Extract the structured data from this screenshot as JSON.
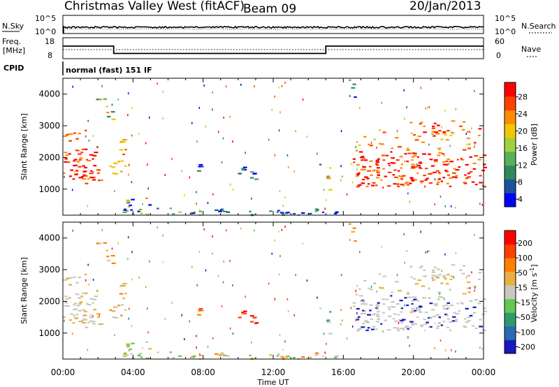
{
  "header": {
    "station": "Christmas Valley West (fitACF)",
    "beam": "Beam 09",
    "date": "20/Jan/2013"
  },
  "top_panels": {
    "nsky_label": "N.Sky",
    "nsky_ticks": [
      "10^5",
      "10^0"
    ],
    "nsearch_label": "N.Search",
    "nsearch_ticks": [
      "10^5",
      "10^0"
    ],
    "freq_label_1": "Freq.",
    "freq_label_2": "[MHz]",
    "freq_ticks": [
      "18",
      "8"
    ],
    "nave_label": "Nave",
    "nave_ticks": [
      "60",
      "0"
    ],
    "cpid_label": "CPID",
    "cpid_text": "normal (fast) 151 IF"
  },
  "chart_data": [
    {
      "type": "line",
      "title": "",
      "series": [
        {
          "name": "Freq.",
          "x": [
            0.0,
            2.9,
            2.9,
            15.0,
            15.0,
            24.0
          ],
          "values": [
            14.0,
            14.0,
            10.5,
            10.5,
            14.0,
            14.0
          ]
        }
      ],
      "xlim": [
        0,
        24
      ],
      "ylim": [
        8,
        18
      ],
      "ylabel": "Freq. [MHz]"
    },
    {
      "type": "heatmap",
      "ylabel": "Slant Range [km]",
      "colorbar_label": "Power [dB]",
      "colorbar_ticks": [
        "28",
        "24",
        "20",
        "16",
        "12",
        "8",
        "4"
      ],
      "y_ticks": [
        "4000",
        "3000",
        "2000",
        "1000"
      ],
      "xlim": [
        0,
        24
      ],
      "ylim": [
        180,
        4500
      ]
    },
    {
      "type": "heatmap",
      "ylabel": "Slant Range [km]",
      "colorbar_label": "Velocity [m s^-1]",
      "colorbar_ticks": [
        "200",
        "100",
        "50",
        "15",
        "-15",
        "-50",
        "-100",
        "-200"
      ],
      "y_ticks": [
        "4000",
        "3000",
        "2000",
        "1000"
      ],
      "xlim": [
        0,
        24
      ],
      "ylim": [
        180,
        4500
      ]
    }
  ],
  "x_axis": {
    "ticks": [
      "00:00",
      "04:00",
      "08:00",
      "12:00",
      "16:00",
      "20:00",
      "00:00"
    ],
    "label": "Time UT"
  },
  "colors": {
    "power": [
      "#0000ff",
      "#1e50a0",
      "#2e8b57",
      "#5aaf5a",
      "#a0d040",
      "#f0c800",
      "#ff8c00",
      "#ff4000",
      "#ff0000"
    ],
    "velocity": [
      "#1818c0",
      "#2a6ab0",
      "#2e9a6e",
      "#63c850",
      "#c8c8c0",
      "#e8b040",
      "#ff8000",
      "#ff4000",
      "#ff0000"
    ]
  }
}
